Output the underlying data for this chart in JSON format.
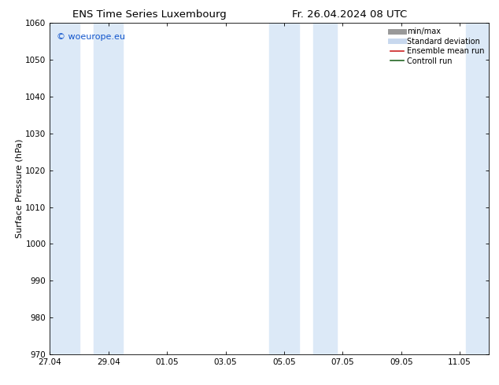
{
  "title_left": "ENS Time Series Luxembourg",
  "title_right": "Fr. 26.04.2024 08 UTC",
  "ylabel": "Surface Pressure (hPa)",
  "ylim": [
    970,
    1060
  ],
  "yticks": [
    970,
    980,
    990,
    1000,
    1010,
    1020,
    1030,
    1040,
    1050,
    1060
  ],
  "xtick_labels": [
    "27.04",
    "29.04",
    "01.05",
    "03.05",
    "05.05",
    "07.05",
    "09.05",
    "11.05"
  ],
  "num_ticks": 8,
  "xlim_start": 0,
  "xlim_end": 15,
  "shaded_bands": [
    {
      "x_start": 0.0,
      "x_end": 1.0
    },
    {
      "x_start": 1.5,
      "x_end": 2.5
    },
    {
      "x_start": 7.5,
      "x_end": 8.5
    },
    {
      "x_start": 9.0,
      "x_end": 9.8
    },
    {
      "x_start": 14.2,
      "x_end": 15.0
    }
  ],
  "shaded_color": "#dce9f7",
  "watermark_text": "© woeurope.eu",
  "watermark_color": "#1155cc",
  "legend_entries": [
    {
      "label": "min/max",
      "color": "#999999",
      "linewidth": 5,
      "linestyle": "-"
    },
    {
      "label": "Standard deviation",
      "color": "#c8d8ee",
      "linewidth": 5,
      "linestyle": "-"
    },
    {
      "label": "Ensemble mean run",
      "color": "#cc2222",
      "linewidth": 1.2,
      "linestyle": "-"
    },
    {
      "label": "Controll run",
      "color": "#226622",
      "linewidth": 1.2,
      "linestyle": "-"
    }
  ],
  "bg_color": "#ffffff",
  "title_fontsize": 9.5,
  "label_fontsize": 8,
  "tick_fontsize": 7.5,
  "legend_fontsize": 7,
  "watermark_fontsize": 8
}
